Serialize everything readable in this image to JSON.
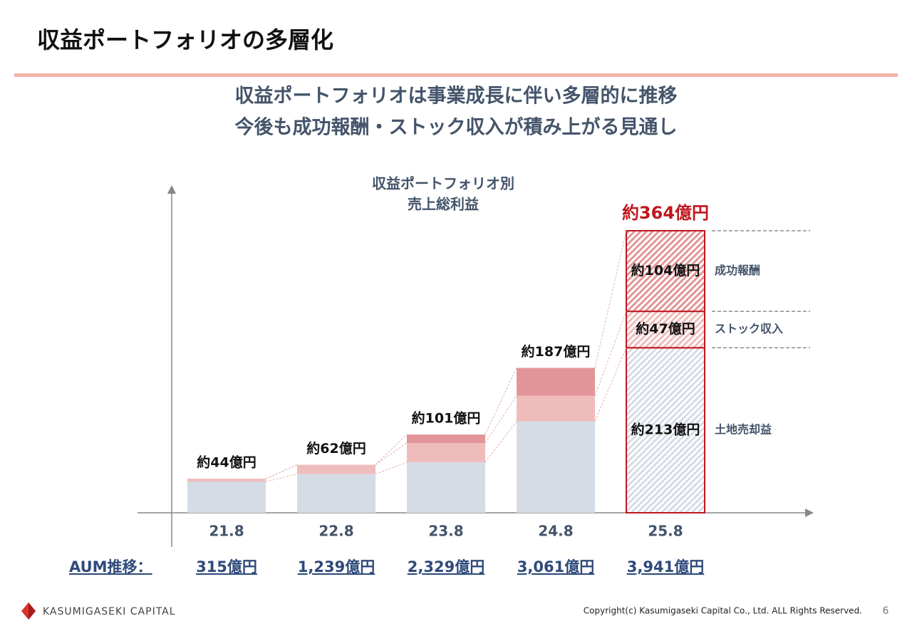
{
  "header": {
    "title": "収益ポートフォリオの多層化",
    "subtitle": [
      "収益ポートフォリオは事業成長に伴い多層的に推移",
      "今後も成功報酬・ストック収入が積み上がる見通し"
    ]
  },
  "chart_data": {
    "type": "bar",
    "stacked": true,
    "title": [
      "収益ポートフォリオ別",
      "売上総利益"
    ],
    "categories": [
      "21.8",
      "22.8",
      "23.8",
      "24.8",
      "25.8"
    ],
    "series": [
      {
        "name": "土地売却益",
        "color": "#d6dce6",
        "values": [
          40,
          50,
          65,
          118,
          213
        ],
        "value_labels": [
          null,
          null,
          null,
          null,
          "約213億円"
        ]
      },
      {
        "name": "ストック収入",
        "color": "#efbcbc",
        "values": [
          4,
          12,
          25,
          33,
          47
        ],
        "value_labels": [
          null,
          null,
          null,
          null,
          "約47億円"
        ]
      },
      {
        "name": "成功報酬",
        "color": "#e29598",
        "values": [
          0,
          0,
          11,
          36,
          104
        ],
        "value_labels": [
          null,
          null,
          null,
          null,
          "約104億円"
        ]
      }
    ],
    "total_labels": [
      "約44億円",
      "約62億円",
      "約101億円",
      "約187億円",
      "約364億円"
    ],
    "aum": {
      "label": "AUM推移：",
      "values": [
        "315億円",
        "1,239億円",
        "2,329億円",
        "3,061億円",
        "3,941億円"
      ]
    }
  },
  "footer": {
    "logo": "KASUMIGASEKI CAPITAL",
    "copyright": "Copyright(c) Kasumigaseki Capital Co., Ltd. ALL Rights Reserved.",
    "page": "6"
  }
}
